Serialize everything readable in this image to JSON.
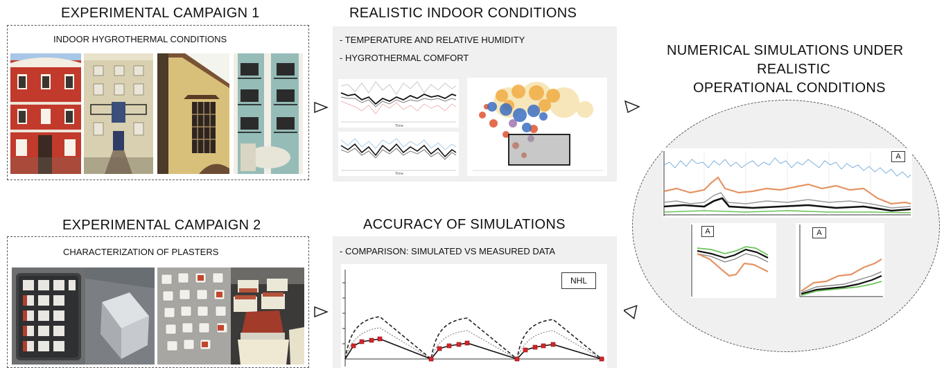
{
  "campaign1": {
    "title": "EXPERIMENTAL CAMPAIGN 1",
    "subtitle": "INDOOR HYGROTHERMAL CONDITIONS"
  },
  "campaign2": {
    "title": "EXPERIMENTAL CAMPAIGN 2",
    "subtitle": "CHARACTERIZATION OF PLASTERS"
  },
  "realistic": {
    "title": "REALISTIC INDOOR CONDITIONS",
    "bullets": [
      "- TEMPERATURE AND RELATIVE HUMIDITY",
      "- HYGROTHERMAL COMFORT"
    ],
    "axis_label": "Time"
  },
  "accuracy": {
    "title": "ACCURACY OF SIMULATIONS",
    "bullet": "- COMPARISON: SIMULATED VS MEASURED DATA",
    "tag": "NHL"
  },
  "numerical": {
    "title_lines": [
      "NUMERICAL SIMULATIONS UNDER",
      "REALISTIC",
      "OPERATIONAL CONDITIONS"
    ],
    "tag": "A"
  },
  "colors": {
    "blue_series": "#7fb1dc",
    "orange_series": "#e59463",
    "green_series": "#6cc25a",
    "red_marker": "#d8242a"
  },
  "icons": [
    "triangle-arrow-icon"
  ]
}
